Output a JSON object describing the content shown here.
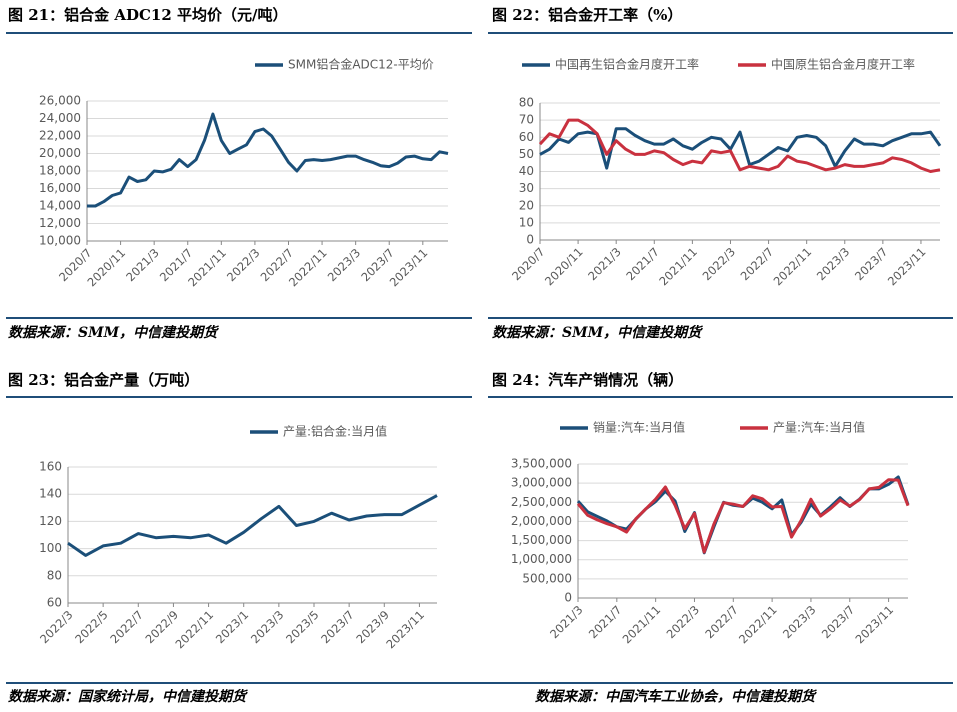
{
  "chart_data": [
    {
      "type": "line",
      "title": "图 21：铝合金 ADC12 平均价（元/吨）",
      "source": "数据来源：SMM，中信建投期货",
      "categories": [
        "2020/7",
        null,
        null,
        null,
        "2020/11",
        null,
        null,
        null,
        "2021/3",
        null,
        null,
        null,
        "2021/7",
        null,
        null,
        null,
        "2021/11",
        null,
        null,
        null,
        "2022/3",
        null,
        null,
        null,
        "2022/7",
        null,
        null,
        null,
        "2022/11",
        null,
        null,
        null,
        "2023/3",
        null,
        null,
        null,
        "2023/7",
        null,
        null,
        null,
        "2023/11",
        null,
        null,
        null
      ],
      "series": [
        {
          "name": "SMM铝合金ADC12-平均价",
          "color": "#1b4f79",
          "values": [
            14000,
            14000,
            14500,
            15200,
            15500,
            17300,
            16800,
            17000,
            18000,
            17900,
            18200,
            19300,
            18500,
            19300,
            21500,
            24500,
            21500,
            20000,
            20500,
            21000,
            22500,
            22800,
            22000,
            20500,
            19000,
            18000,
            19200,
            19300,
            19200,
            19300,
            19500,
            19700,
            19700,
            19300,
            19000,
            18600,
            18500,
            18900,
            19600,
            19700,
            19400,
            19300,
            20200,
            20000
          ]
        }
      ],
      "ylim": [
        10000,
        26000
      ],
      "yticks": [
        {
          "value": 10000,
          "label": "10,000"
        },
        {
          "value": 12000,
          "label": "12,000"
        },
        {
          "value": 14000,
          "label": "14,000"
        },
        {
          "value": 16000,
          "label": "16,000"
        },
        {
          "value": 18000,
          "label": "18,000"
        },
        {
          "value": 20000,
          "label": "20,000"
        },
        {
          "value": 22000,
          "label": "22,000"
        },
        {
          "value": 24000,
          "label": "24,000"
        },
        {
          "value": 26000,
          "label": "26,000"
        }
      ],
      "grid": true
    },
    {
      "type": "line",
      "title": "图 22：铝合金开工率（%）",
      "source": "数据来源：SMM，中信建投期货",
      "categories": [
        "2020/7",
        null,
        null,
        null,
        "2020/11",
        null,
        null,
        null,
        "2021/3",
        null,
        null,
        null,
        "2021/7",
        null,
        null,
        null,
        "2021/11",
        null,
        null,
        null,
        "2022/3",
        null,
        null,
        null,
        "2022/7",
        null,
        null,
        null,
        "2022/11",
        null,
        null,
        null,
        "2023/3",
        null,
        null,
        null,
        "2023/7",
        null,
        null,
        null,
        "2023/11",
        null,
        null
      ],
      "series": [
        {
          "name": "中国再生铝合金月度开工率",
          "color": "#1b4f79",
          "values": [
            50,
            53,
            59,
            57,
            62,
            63,
            62,
            42,
            65,
            65,
            61,
            58,
            56,
            56,
            59,
            55,
            53,
            57,
            60,
            59,
            53,
            63,
            44,
            46,
            50,
            54,
            52,
            60,
            61,
            60,
            55,
            43,
            52,
            59,
            56,
            56,
            55,
            58,
            60,
            62,
            62,
            63,
            55
          ]
        },
        {
          "name": "中国原生铝合金月度开工率",
          "color": "#c9313f",
          "values": [
            56,
            62,
            60,
            70,
            70,
            67,
            62,
            50,
            58,
            53,
            50,
            50,
            52,
            51,
            47,
            44,
            46,
            45,
            52,
            51,
            52,
            41,
            43,
            42,
            41,
            43,
            49,
            46,
            45,
            43,
            41,
            42,
            44,
            43,
            43,
            44,
            45,
            48,
            47,
            45,
            42,
            40,
            41
          ]
        }
      ],
      "ylim": [
        0,
        80
      ],
      "yticks": [
        0,
        10,
        20,
        30,
        40,
        50,
        60,
        70,
        80
      ],
      "grid": true
    },
    {
      "type": "line",
      "title": "图 23：铝合金产量（万吨）",
      "source": "数据来源：国家统计局，中信建投期货",
      "categories": [
        "2022/3",
        null,
        "2022/5",
        null,
        "2022/7",
        null,
        "2022/9",
        null,
        "2022/11",
        null,
        "2023/1",
        null,
        "2023/3",
        null,
        "2023/5",
        null,
        "2023/7",
        null,
        "2023/9",
        null,
        "2023/11",
        null
      ],
      "series": [
        {
          "name": "产量:铝合金:当月值",
          "color": "#1b4f79",
          "values": [
            104,
            95,
            102,
            104,
            111,
            108,
            109,
            108,
            110,
            104,
            112,
            122,
            131,
            117,
            120,
            126,
            121,
            124,
            125,
            125,
            132,
            139
          ]
        }
      ],
      "ylim": [
        60,
        160
      ],
      "yticks": [
        60,
        80,
        100,
        120,
        140,
        160
      ],
      "grid": true
    },
    {
      "type": "line",
      "title": "图 24：汽车产销情况（辆）",
      "source": "数据来源：中国汽车工业协会，中信建投期货",
      "categories": [
        "2021/3",
        null,
        null,
        null,
        "2021/7",
        null,
        null,
        null,
        "2021/11",
        null,
        null,
        null,
        "2022/3",
        null,
        null,
        null,
        "2022/7",
        null,
        null,
        null,
        "2022/11",
        null,
        null,
        null,
        "2023/3",
        null,
        null,
        null,
        "2023/7",
        null,
        null,
        null,
        "2023/11",
        null,
        null
      ],
      "series": [
        {
          "name": "销量:汽车:当月值",
          "color": "#1b4f79",
          "values": [
            2530000,
            2250000,
            2130000,
            2010000,
            1860000,
            1800000,
            2070000,
            2330000,
            2520000,
            2790000,
            2530000,
            1740000,
            2230000,
            1180000,
            1860000,
            2500000,
            2420000,
            2390000,
            2610000,
            2500000,
            2330000,
            2560000,
            1650000,
            1980000,
            2450000,
            2160000,
            2380000,
            2620000,
            2390000,
            2580000,
            2850000,
            2850000,
            2970000,
            3160000,
            2440000
          ]
        },
        {
          "name": "产量:汽车:当月值",
          "color": "#c9313f",
          "values": [
            2460000,
            2160000,
            2040000,
            1940000,
            1860000,
            1720000,
            2080000,
            2330000,
            2580000,
            2900000,
            2420000,
            1810000,
            2210000,
            1200000,
            1930000,
            2490000,
            2450000,
            2390000,
            2670000,
            2590000,
            2380000,
            2390000,
            1590000,
            2030000,
            2580000,
            2140000,
            2330000,
            2560000,
            2400000,
            2570000,
            2850000,
            2890000,
            3090000,
            3080000,
            2410000
          ]
        }
      ],
      "ylim": [
        0,
        3500000
      ],
      "yticks": [
        0,
        {
          "value": 500000,
          "label": "500,000"
        },
        {
          "value": 1000000,
          "label": "1,000,000"
        },
        {
          "value": 1500000,
          "label": "1,500,000"
        },
        {
          "value": 2000000,
          "label": "2,000,000"
        },
        {
          "value": 2500000,
          "label": "2,500,000"
        },
        {
          "value": 3000000,
          "label": "3,000,000"
        },
        {
          "value": 3500000,
          "label": "3,500,000"
        }
      ],
      "grid": true
    }
  ]
}
